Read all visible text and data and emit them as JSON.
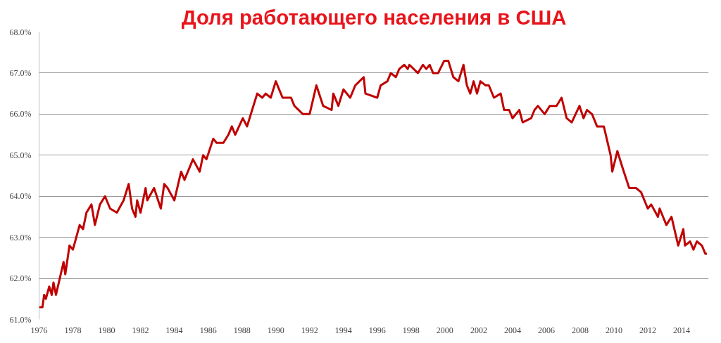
{
  "chart_data": {
    "type": "line",
    "title": "Доля работающего населения в США",
    "xlim": [
      1976,
      2015.6
    ],
    "ylim": [
      61,
      68
    ],
    "xticks": [
      1976,
      1978,
      1980,
      1982,
      1984,
      1986,
      1988,
      1990,
      1992,
      1994,
      1996,
      1998,
      2000,
      2002,
      2004,
      2006,
      2008,
      2010,
      2012,
      2014
    ],
    "yticks": [
      {
        "value": 61,
        "label": "61.0%"
      },
      {
        "value": 62,
        "label": "62.0%"
      },
      {
        "value": 63,
        "label": "63.0%"
      },
      {
        "value": 64,
        "label": "64.0%"
      },
      {
        "value": 65,
        "label": "65.0%"
      },
      {
        "value": 66,
        "label": "66.0%"
      },
      {
        "value": 67,
        "label": "67.0%"
      },
      {
        "value": 68,
        "label": "68.0%"
      }
    ],
    "grid": "y",
    "marker": "none",
    "line_style": "solid",
    "series": [
      {
        "color": "#c00000",
        "x": [
          1976.0,
          1976.2,
          1976.3,
          1976.4,
          1976.6,
          1976.75,
          1976.85,
          1977.0,
          1977.45,
          1977.55,
          1977.8,
          1978.0,
          1978.4,
          1978.6,
          1978.8,
          1979.1,
          1979.3,
          1979.6,
          1979.9,
          1980.2,
          1980.6,
          1981.0,
          1981.3,
          1981.5,
          1981.7,
          1981.8,
          1982.0,
          1982.3,
          1982.4,
          1982.8,
          1983.2,
          1983.4,
          1983.6,
          1984.0,
          1984.4,
          1984.6,
          1985.1,
          1985.5,
          1985.7,
          1985.9,
          1986.3,
          1986.5,
          1986.9,
          1987.2,
          1987.4,
          1987.6,
          1988.05,
          1988.3,
          1988.6,
          1988.9,
          1989.2,
          1989.4,
          1989.7,
          1990.0,
          1990.4,
          1990.9,
          1991.1,
          1991.6,
          1992.0,
          1992.4,
          1992.8,
          1993.3,
          1993.4,
          1993.7,
          1994.0,
          1994.4,
          1994.7,
          1995.2,
          1995.3,
          1996.0,
          1996.2,
          1996.6,
          1996.8,
          1997.1,
          1997.3,
          1997.6,
          1997.8,
          1997.9,
          1998.4,
          1998.7,
          1998.9,
          1999.1,
          1999.3,
          1999.6,
          1999.96,
          2000.2,
          2000.5,
          2000.8,
          2001.1,
          2001.3,
          2001.5,
          2001.7,
          2001.9,
          2002.1,
          2002.4,
          2002.6,
          2002.9,
          2003.3,
          2003.5,
          2003.8,
          2004.0,
          2004.4,
          2004.6,
          2005.1,
          2005.3,
          2005.5,
          2005.9,
          2006.2,
          2006.6,
          2006.9,
          2007.2,
          2007.5,
          2007.96,
          2008.2,
          2008.4,
          2008.7,
          2009.0,
          2009.4,
          2009.8,
          2009.9,
          2010.2,
          2010.5,
          2010.9,
          2011.3,
          2011.6,
          2012.0,
          2012.2,
          2012.6,
          2012.7,
          2013.1,
          2013.4,
          2013.8,
          2014.1,
          2014.2,
          2014.5,
          2014.7,
          2014.9,
          2015.2,
          2015.4,
          2015.5
        ],
        "values": [
          61.3,
          61.3,
          61.6,
          61.5,
          61.8,
          61.6,
          61.9,
          61.6,
          62.4,
          62.1,
          62.8,
          62.7,
          63.3,
          63.2,
          63.6,
          63.8,
          63.3,
          63.8,
          64.0,
          63.7,
          63.6,
          63.9,
          64.3,
          63.7,
          63.5,
          63.9,
          63.6,
          64.2,
          63.9,
          64.2,
          63.7,
          64.3,
          64.2,
          63.9,
          64.6,
          64.4,
          64.9,
          64.6,
          65.0,
          64.9,
          65.4,
          65.3,
          65.3,
          65.5,
          65.7,
          65.5,
          65.9,
          65.7,
          66.1,
          66.5,
          66.4,
          66.5,
          66.4,
          66.8,
          66.4,
          66.4,
          66.2,
          66.0,
          66.0,
          66.7,
          66.2,
          66.1,
          66.5,
          66.2,
          66.6,
          66.4,
          66.7,
          66.9,
          66.5,
          66.4,
          66.7,
          66.8,
          67.0,
          66.9,
          67.1,
          67.2,
          67.1,
          67.2,
          67.0,
          67.2,
          67.1,
          67.2,
          67.0,
          67.0,
          67.3,
          67.3,
          66.9,
          66.8,
          67.2,
          66.7,
          66.5,
          66.8,
          66.5,
          66.8,
          66.7,
          66.7,
          66.4,
          66.5,
          66.1,
          66.1,
          65.9,
          66.1,
          65.8,
          65.9,
          66.1,
          66.2,
          66.0,
          66.2,
          66.2,
          66.4,
          65.9,
          65.8,
          66.2,
          65.9,
          66.1,
          66.0,
          65.7,
          65.7,
          65.0,
          64.6,
          65.1,
          64.7,
          64.2,
          64.2,
          64.1,
          63.7,
          63.8,
          63.5,
          63.7,
          63.3,
          63.5,
          62.8,
          63.2,
          62.8,
          62.9,
          62.7,
          62.9,
          62.8,
          62.6,
          62.6
        ]
      }
    ]
  }
}
